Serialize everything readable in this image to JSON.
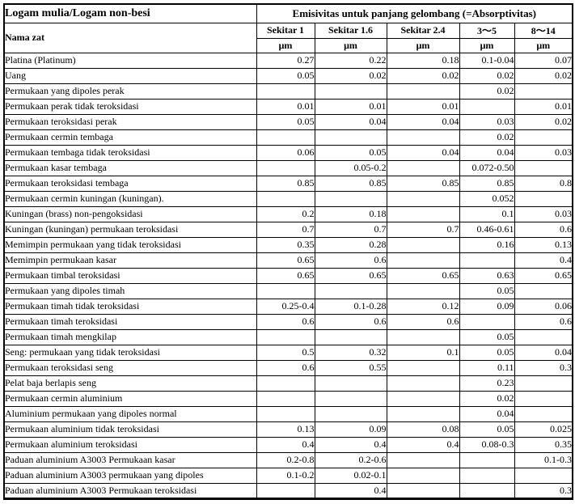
{
  "header": {
    "title_left": "Logam mulia/Logam non-besi",
    "title_right": "Emisivitas untuk panjang gelombang (=Absorptivitas)",
    "name_column_label": "Nama zat",
    "columns": [
      {
        "label": "Sekitar 1",
        "unit": "μm"
      },
      {
        "label": "Sekitar 1.6",
        "unit": "μm"
      },
      {
        "label": "Sekitar 2.4",
        "unit": "μm"
      },
      {
        "label": "3〜5",
        "unit": "μm"
      },
      {
        "label": "8〜14",
        "unit": "μm"
      }
    ]
  },
  "rows": [
    {
      "name": "Platina (Platinum)",
      "values": [
        "0.27",
        "0.22",
        "0.18",
        "0.1-0.04",
        "0.07"
      ]
    },
    {
      "name": "Uang",
      "values": [
        "0.05",
        "0.02",
        "0.02",
        "0.02",
        "0.02"
      ]
    },
    {
      "name": "Permukaan yang dipoles perak",
      "values": [
        "",
        "",
        "",
        "0.02",
        ""
      ]
    },
    {
      "name": "Permukaan perak tidak teroksidasi",
      "values": [
        "0.01",
        "0.01",
        "0.01",
        "",
        "0.01"
      ]
    },
    {
      "name": "Permukaan teroksidasi perak",
      "values": [
        "0.05",
        "0.04",
        "0.04",
        "0.03",
        "0.02"
      ]
    },
    {
      "name": "Permukaan cermin tembaga",
      "values": [
        "",
        "",
        "",
        "0.02",
        ""
      ]
    },
    {
      "name": "Permukaan tembaga tidak teroksidasi",
      "values": [
        "0.06",
        "0.05",
        "0.04",
        "0.04",
        "0.03"
      ]
    },
    {
      "name": "Permukaan kasar tembaga",
      "values": [
        "",
        "0.05-0.2",
        "",
        "0.072-0.50",
        ""
      ]
    },
    {
      "name": "Permukaan teroksidasi tembaga",
      "values": [
        "0.85",
        "0.85",
        "0.85",
        "0.85",
        "0.8"
      ]
    },
    {
      "name": "Permukaan cermin kuningan (kuningan).",
      "values": [
        "",
        "",
        "",
        "0.052",
        ""
      ]
    },
    {
      "name": "Kuningan (brass) non-pengoksidasi",
      "values": [
        "0.2",
        "0.18",
        "",
        "0.1",
        "0.03"
      ]
    },
    {
      "name": "Kuningan (kuningan) permukaan teroksidasi",
      "values": [
        "0.7",
        "0.7",
        "0.7",
        "0.46-0.61",
        "0.6"
      ]
    },
    {
      "name": "Memimpin permukaan yang tidak teroksidasi",
      "values": [
        "0.35",
        "0.28",
        "",
        "0.16",
        "0.13"
      ]
    },
    {
      "name": "Memimpin permukaan kasar",
      "values": [
        "0.65",
        "0.6",
        "",
        "",
        "0.4"
      ]
    },
    {
      "name": "Permukaan timbal teroksidasi",
      "values": [
        "0.65",
        "0.65",
        "0.65",
        "0.63",
        "0.65"
      ]
    },
    {
      "name": "Permukaan yang dipoles timah",
      "values": [
        "",
        "",
        "",
        "0.05",
        ""
      ]
    },
    {
      "name": "Permukaan timah tidak teroksidasi",
      "values": [
        "0.25-0.4",
        "0.1-0.28",
        "0.12",
        "0.09",
        "0.06"
      ]
    },
    {
      "name": "Permukaan timah teroksidasi",
      "values": [
        "0.6",
        "0.6",
        "0.6",
        "",
        "0.6"
      ]
    },
    {
      "name": "Permukaan timah mengkilap",
      "values": [
        "",
        "",
        "",
        "0.05",
        ""
      ]
    },
    {
      "name": "Seng: permukaan yang tidak teroksidasi",
      "values": [
        "0.5",
        "0.32",
        "0.1",
        "0.05",
        "0.04"
      ]
    },
    {
      "name": "Permukaan teroksidasi seng",
      "values": [
        "0.6",
        "0.55",
        "",
        "0.11",
        "0.3"
      ]
    },
    {
      "name": "Pelat baja berlapis seng",
      "values": [
        "",
        "",
        "",
        "0.23",
        ""
      ]
    },
    {
      "name": "Permukaan cermin aluminium",
      "values": [
        "",
        "",
        "",
        "0.02",
        ""
      ]
    },
    {
      "name": "Aluminium permukaan yang dipoles normal",
      "values": [
        "",
        "",
        "",
        "0.04",
        ""
      ]
    },
    {
      "name": "Permukaan aluminium tidak teroksidasi",
      "values": [
        "0.13",
        "0.09",
        "0.08",
        "0.05",
        "0.025"
      ]
    },
    {
      "name": "Permukaan aluminium teroksidasi",
      "values": [
        "0.4",
        "0.4",
        "0.4",
        "0.08-0.3",
        "0.35"
      ]
    },
    {
      "name": "Paduan aluminium A3003 Permukaan kasar",
      "values": [
        "0.2-0.8",
        "0.2-0.6",
        "",
        "",
        "0.1-0.3"
      ]
    },
    {
      "name": "Paduan aluminium A3003 permukaan yang dipoles",
      "values": [
        "0.1-0.2",
        "0.02-0.1",
        "",
        "",
        ""
      ]
    },
    {
      "name": "Paduan aluminium A3003 Permukaan teroksidasi",
      "values": [
        "",
        "0.4",
        "",
        "",
        "0.3"
      ]
    }
  ],
  "colors": {
    "border": "#000000",
    "background": "#ffffff",
    "text": "#000000"
  }
}
